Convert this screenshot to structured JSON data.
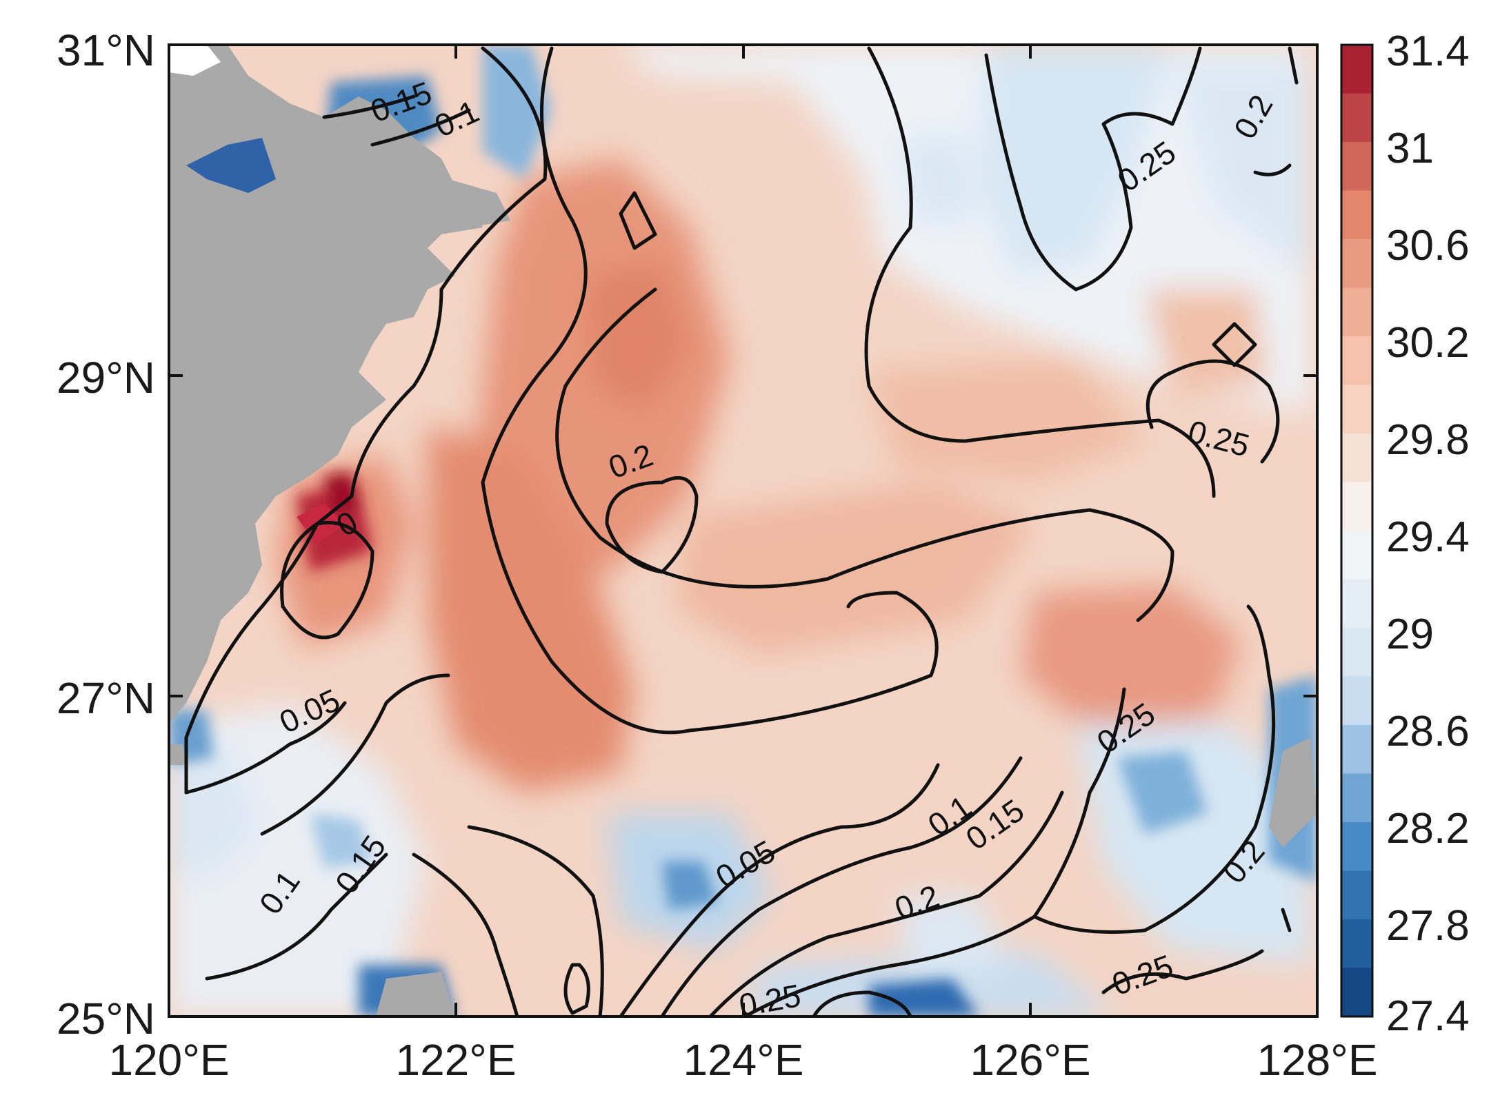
{
  "map": {
    "lon_ticks": [
      "120°E",
      "122°E",
      "124°E",
      "126°E",
      "128°E"
    ],
    "lat_ticks": [
      "31°N",
      "29°N",
      "27°N",
      "25°N"
    ],
    "lon_range": [
      120,
      128
    ],
    "lat_range": [
      25,
      31
    ]
  },
  "colorbar": {
    "labels": [
      "31.4",
      "31",
      "30.6",
      "30.2",
      "29.8",
      "29.4",
      "29",
      "28.6",
      "28.2",
      "27.8",
      "27.4"
    ],
    "min": 27.4,
    "max": 31.4,
    "step": 0.2,
    "colormap": "blue-white-red",
    "colors": {
      "deep_blue": "#0b3d7a",
      "mid_blue": "#3f86c4",
      "light_blue": "#cfe2f2",
      "white": "#f7f7f7",
      "light_red": "#f6c6ae",
      "mid_red": "#e28469",
      "deep_red": "#9c0f27"
    }
  },
  "land_color": "#a9a9a9",
  "contour_labels": {
    "c1": "0.15",
    "c2": "0.1",
    "c3": "0.25",
    "c4": "0.2",
    "c5": "0.25",
    "c6": "0.2",
    "c7": "0",
    "c8": "0.05",
    "c9": "0.1",
    "c10": "0.15",
    "c11": "0.05",
    "c12": "0.1",
    "c13": "0.15",
    "c14": "0.2",
    "c15": "0.25",
    "c16": "0.2",
    "c17": "0.25",
    "c18": "0.25"
  }
}
